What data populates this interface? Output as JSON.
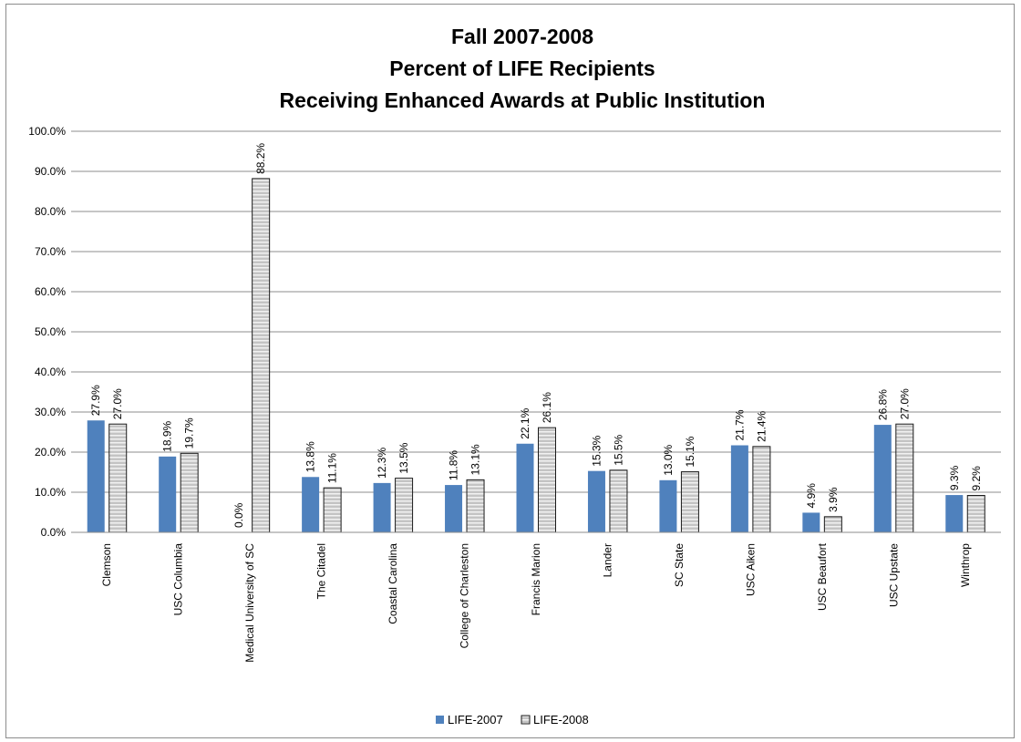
{
  "chart_data": {
    "type": "bar",
    "title": [
      "Fall 2007-2008",
      "Percent of LIFE Recipients",
      "Receiving Enhanced Awards at Public Institution"
    ],
    "categories": [
      "Clemson",
      "USC Columbia",
      "Medical University of SC",
      "The Citadel",
      "Coastal Carolina",
      "College of Charleston",
      "Francis Marion",
      "Lander",
      "SC State",
      "USC Aiken",
      "USC Beaufort",
      "USC Upstate",
      "Winthrop"
    ],
    "series": [
      {
        "name": "LIFE-2007",
        "color": "#4f81bd",
        "pattern": "solid",
        "values": [
          27.9,
          18.9,
          0.0,
          13.8,
          12.3,
          11.8,
          22.1,
          15.3,
          13.0,
          21.7,
          4.9,
          26.8,
          9.3
        ],
        "labels": [
          "27.9%",
          "18.9%",
          "0.0%",
          "13.8%",
          "12.3%",
          "11.8%",
          "22.1%",
          "15.3%",
          "13.0%",
          "21.7%",
          "4.9%",
          "26.8%",
          "9.3%"
        ]
      },
      {
        "name": "LIFE-2008",
        "color": "#bfbfbf",
        "pattern": "horizontal-stripes",
        "values": [
          27.0,
          19.7,
          88.2,
          11.1,
          13.5,
          13.1,
          26.1,
          15.5,
          15.1,
          21.4,
          3.9,
          27.0,
          9.2
        ],
        "labels": [
          "27.0%",
          "19.7%",
          "88.2%",
          "11.1%",
          "13.5%",
          "13.1%",
          "26.1%",
          "15.5%",
          "15.1%",
          "21.4%",
          "3.9%",
          "27.0%",
          "9.2%"
        ]
      }
    ],
    "ylim": [
      0,
      100
    ],
    "yticks": [
      "0.0%",
      "10.0%",
      "20.0%",
      "30.0%",
      "40.0%",
      "50.0%",
      "60.0%",
      "70.0%",
      "80.0%",
      "90.0%",
      "100.0%"
    ],
    "grid": true,
    "legend_position": "bottom"
  }
}
